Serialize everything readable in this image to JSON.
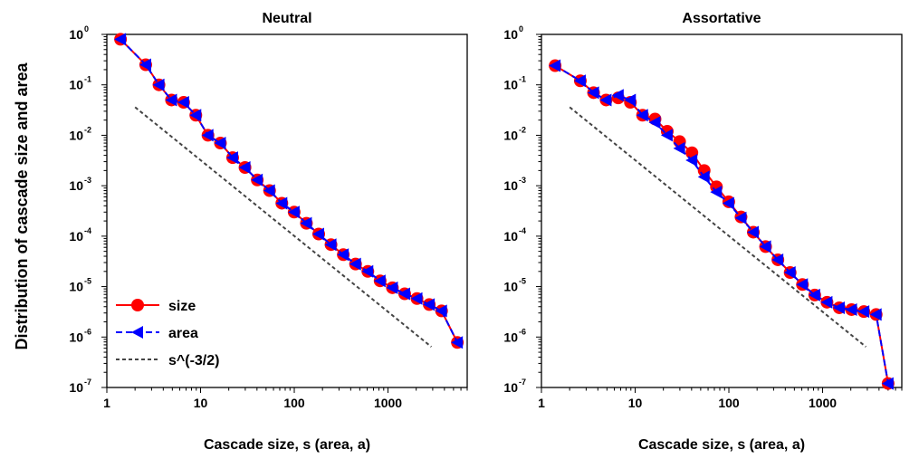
{
  "ylabel": "Distribution of cascade size and area",
  "colors": {
    "size": "#ff0000",
    "area": "#0000ff",
    "power": "#444444"
  },
  "legend": [
    {
      "key": "size",
      "label": "size"
    },
    {
      "key": "area",
      "label": "area"
    },
    {
      "key": "power",
      "label": "s^(-3/2)"
    }
  ],
  "chart_data": [
    {
      "type": "line",
      "title": "Neutral",
      "xlabel": "Cascade size, s (area, a)",
      "xscale": "log",
      "yscale": "log",
      "xlim": [
        1,
        7000
      ],
      "ylim": [
        1e-07,
        1
      ],
      "xticks": [
        1,
        10,
        100,
        1000
      ],
      "yticks_exp": [
        0,
        -1,
        -2,
        -3,
        -4,
        -5,
        -6,
        -7
      ],
      "legend_placement": "bottom-left",
      "series": [
        {
          "name": "size",
          "marker": "circle",
          "line": "solid",
          "x": [
            1.4,
            2.6,
            3.6,
            4.9,
            6.6,
            8.9,
            12.0,
            16.3,
            22.0,
            29.8,
            40.3,
            54.5,
            73.7,
            99.7,
            134.8,
            182.3,
            246.5,
            333.4,
            450.8,
            609.6,
            824.4,
            1114.8,
            1507.6,
            2038.7,
            2757.0,
            3728.3,
            5500
          ],
          "y": [
            0.8,
            0.25,
            0.1,
            0.05,
            0.045,
            0.025,
            0.01,
            0.007,
            0.0036,
            0.0023,
            0.0013,
            0.0008,
            0.00045,
            0.0003,
            0.00018,
            0.00011,
            6.8e-05,
            4.3e-05,
            2.8e-05,
            2e-05,
            1.3e-05,
            9.5e-06,
            7.2e-06,
            5.8e-06,
            4.4e-06,
            3.3e-06,
            7.8e-07
          ]
        },
        {
          "name": "area",
          "marker": "triangle-left",
          "line": "dashed",
          "x": [
            1.4,
            2.6,
            3.6,
            4.9,
            6.6,
            8.9,
            12.0,
            16.3,
            22.0,
            29.8,
            40.3,
            54.5,
            73.7,
            99.7,
            134.8,
            182.3,
            246.5,
            333.4,
            450.8,
            609.6,
            824.4,
            1114.8,
            1507.6,
            2038.7,
            2757.0,
            3728.3,
            5500
          ],
          "y": [
            0.8,
            0.25,
            0.1,
            0.05,
            0.045,
            0.025,
            0.01,
            0.007,
            0.0036,
            0.0023,
            0.0013,
            0.0008,
            0.00045,
            0.0003,
            0.00018,
            0.00011,
            6.8e-05,
            4.3e-05,
            2.8e-05,
            2e-05,
            1.3e-05,
            9.5e-06,
            7.2e-06,
            5.8e-06,
            4.4e-06,
            3.3e-06,
            7.8e-07
          ]
        },
        {
          "name": "s^(-3/2)",
          "marker": "none",
          "line": "dotted",
          "x": [
            2,
            2900
          ],
          "y": [
            0.036,
            6.4e-07
          ]
        }
      ]
    },
    {
      "type": "line",
      "title": "Assortative",
      "xlabel": "Cascade size, s (area, a)",
      "xscale": "log",
      "yscale": "log",
      "xlim": [
        1,
        7000
      ],
      "ylim": [
        1e-07,
        1
      ],
      "xticks": [
        1,
        10,
        100,
        1000
      ],
      "yticks_exp": [
        0,
        -1,
        -2,
        -3,
        -4,
        -5,
        -6,
        -7
      ],
      "series": [
        {
          "name": "size",
          "marker": "circle",
          "line": "solid",
          "x": [
            1.4,
            2.6,
            3.6,
            4.9,
            6.6,
            8.9,
            12.0,
            16.3,
            22.0,
            29.8,
            40.3,
            54.5,
            73.7,
            99.7,
            134.8,
            182.3,
            246.5,
            333.4,
            450.8,
            609.6,
            824.4,
            1114.8,
            1507.6,
            2038.7,
            2757.0,
            3728.3,
            5000
          ],
          "y": [
            0.24,
            0.12,
            0.07,
            0.05,
            0.055,
            0.045,
            0.025,
            0.021,
            0.012,
            0.0075,
            0.0045,
            0.002,
            0.00095,
            0.00048,
            0.00024,
            0.00012,
            6.2e-05,
            3.4e-05,
            1.9e-05,
            1.1e-05,
            6.8e-06,
            4.9e-06,
            3.8e-06,
            3.5e-06,
            3.2e-06,
            2.8e-06,
            1.2e-07
          ]
        },
        {
          "name": "area",
          "marker": "triangle-left",
          "line": "dashed",
          "x": [
            1.4,
            2.6,
            3.6,
            4.9,
            6.6,
            8.9,
            12.0,
            16.3,
            22.0,
            29.8,
            40.3,
            54.5,
            73.7,
            99.7,
            134.8,
            182.3,
            246.5,
            333.4,
            450.8,
            609.6,
            824.4,
            1114.8,
            1507.6,
            2038.7,
            2757.0,
            3728.3,
            5000
          ],
          "y": [
            0.24,
            0.12,
            0.07,
            0.05,
            0.062,
            0.05,
            0.025,
            0.018,
            0.01,
            0.0055,
            0.0032,
            0.0015,
            0.00075,
            0.00045,
            0.00023,
            0.00012,
            6.2e-05,
            3.4e-05,
            1.9e-05,
            1.1e-05,
            6.8e-06,
            4.9e-06,
            3.8e-06,
            3.5e-06,
            3.2e-06,
            2.8e-06,
            1.2e-07
          ]
        },
        {
          "name": "s^(-3/2)",
          "marker": "none",
          "line": "dotted",
          "x": [
            2,
            2900
          ],
          "y": [
            0.036,
            6.4e-07
          ]
        }
      ]
    }
  ]
}
